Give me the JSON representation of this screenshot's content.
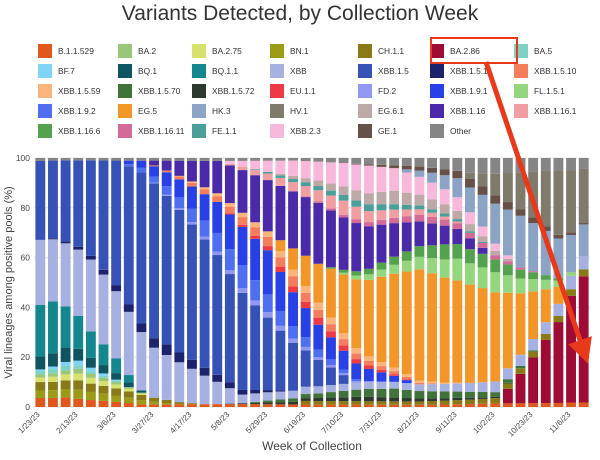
{
  "chart_data": {
    "type": "bar",
    "stacked": true,
    "title": "Variants Detected, by Collection Week",
    "xlabel": "Week of Collection",
    "ylabel": "Viral lineages among positive pools (%)",
    "ylim": [
      0,
      100
    ],
    "yticks": [
      0,
      20,
      40,
      60,
      80,
      100
    ],
    "xtick_labels": [
      "1/23/23",
      "2/13/23",
      "3/6/23",
      "3/27/23",
      "4/17/23",
      "5/8/23",
      "5/29/23",
      "6/19/23",
      "7/10/23",
      "7/31/23",
      "8/21/23",
      "9/11/23",
      "10/2/23",
      "10/23/23",
      "11/6/23"
    ],
    "annotation": {
      "type": "arrow",
      "from": "BA.2.86",
      "to_series": "BA.2.86",
      "color": "#e8391b"
    },
    "highlighted": "BA.2.86",
    "weeks": 44,
    "series": [
      {
        "name": "B.1.1.529",
        "color": "#e1581f"
      },
      {
        "name": "BA.2",
        "color": "#99c679"
      },
      {
        "name": "BA.2.75",
        "color": "#d6e16e"
      },
      {
        "name": "BN.1",
        "color": "#9b9b17"
      },
      {
        "name": "CH.1.1",
        "color": "#8a7a17"
      },
      {
        "name": "BA.2.86",
        "color": "#9e0b35"
      },
      {
        "name": "BA.5",
        "color": "#7fd1c3"
      },
      {
        "name": "BF.7",
        "color": "#7fd4f5"
      },
      {
        "name": "BQ.1",
        "color": "#0e5561"
      },
      {
        "name": "BQ.1.1",
        "color": "#13868e"
      },
      {
        "name": "XBB",
        "color": "#a6b0e1"
      },
      {
        "name": "XBB.1.5",
        "color": "#3652b6"
      },
      {
        "name": "XBB.1.5.1",
        "color": "#1d226d"
      },
      {
        "name": "XBB.1.5.10",
        "color": "#f47d5e"
      },
      {
        "name": "XBB.1.5.59",
        "color": "#fbb47a"
      },
      {
        "name": "XBB.1.5.70",
        "color": "#40733a"
      },
      {
        "name": "XBB.1.5.72",
        "color": "#2d382f"
      },
      {
        "name": "EU.1.1",
        "color": "#ee3a45"
      },
      {
        "name": "FD.2",
        "color": "#8f98f2"
      },
      {
        "name": "XBB.1.9.1",
        "color": "#2940e6"
      },
      {
        "name": "FL.1.5.1",
        "color": "#94d67e"
      },
      {
        "name": "XBB.1.9.2",
        "color": "#4f6ef0"
      },
      {
        "name": "EG.5",
        "color": "#f2962a"
      },
      {
        "name": "HK.3",
        "color": "#8ba3c4"
      },
      {
        "name": "HV.1",
        "color": "#807a6d"
      },
      {
        "name": "EG.6.1",
        "color": "#bda9a7"
      },
      {
        "name": "XBB.1.16",
        "color": "#4a2aa8"
      },
      {
        "name": "XBB.1.16.1",
        "color": "#f19ea2"
      },
      {
        "name": "XBB.1.16.6",
        "color": "#55a24e"
      },
      {
        "name": "XBB.1.16.11",
        "color": "#d36a98"
      },
      {
        "name": "FE.1.1",
        "color": "#4aa099"
      },
      {
        "name": "XBB.2.3",
        "color": "#f8b8dc"
      },
      {
        "name": "GE.1",
        "color": "#665048"
      },
      {
        "name": "Other",
        "color": "#858585"
      }
    ]
  }
}
